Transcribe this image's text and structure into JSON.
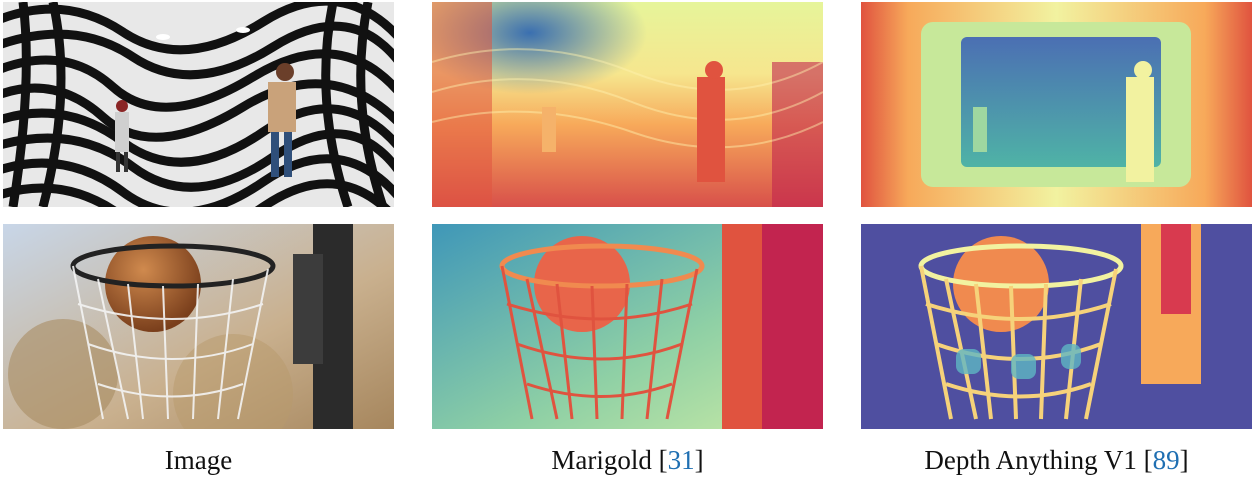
{
  "columns": [
    {
      "caption": "Image",
      "cite": ""
    },
    {
      "caption": "Marigold [",
      "cite": "31",
      "close": "]"
    },
    {
      "caption": "Depth Anything V1 [",
      "cite": "89",
      "close": "]"
    }
  ],
  "colors": {
    "cite_link": "#1f6fb2",
    "spectral_far": "#4b4fa3",
    "spectral_mid": "#e6f59a",
    "spectral_near": "#c2244f"
  }
}
